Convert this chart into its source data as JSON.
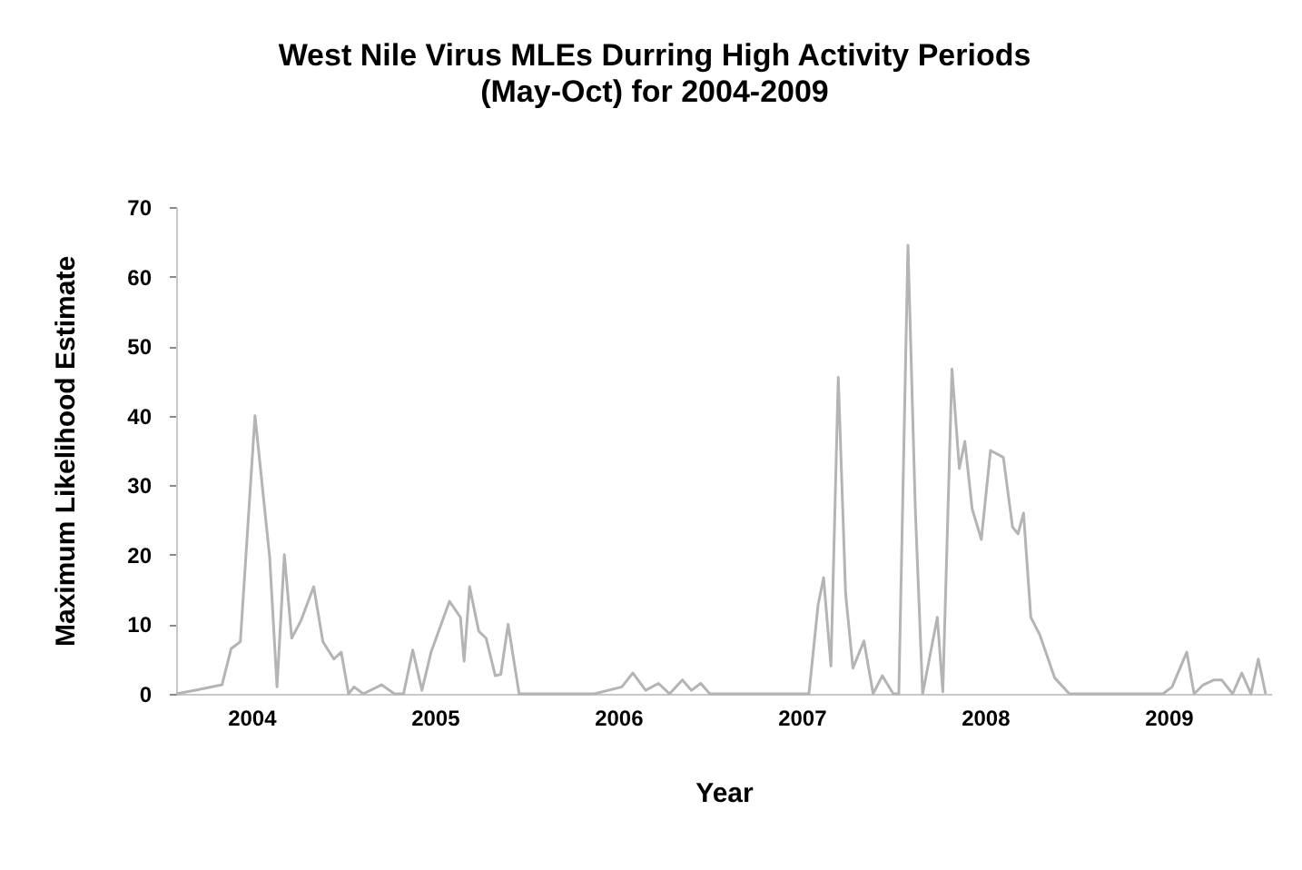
{
  "chart_data": {
    "type": "line",
    "title": "West Nile Virus MLEs Durring High Activity Periods",
    "subtitle": "(May-Oct) for 2004-2009",
    "xlabel": "Year",
    "ylabel": "Maximum Likelihood Estimate",
    "x": [
      2003.59,
      2003.69,
      2003.84,
      2003.89,
      2003.94,
      2004.02,
      2004.1,
      2004.14,
      2004.18,
      2004.22,
      2004.27,
      2004.34,
      2004.39,
      2004.45,
      2004.49,
      2004.53,
      2004.56,
      2004.61,
      2004.71,
      2004.78,
      2004.83,
      2004.88,
      2004.93,
      2004.98,
      2005.08,
      2005.14,
      2005.16,
      2005.19,
      2005.24,
      2005.28,
      2005.33,
      2005.36,
      2005.4,
      2005.46,
      2005.87,
      2006.02,
      2006.08,
      2006.15,
      2006.22,
      2006.28,
      2006.35,
      2006.4,
      2006.45,
      2006.5,
      2007.04,
      2007.09,
      2007.12,
      2007.16,
      2007.2,
      2007.24,
      2007.28,
      2007.34,
      2007.39,
      2007.44,
      2007.5,
      2007.53,
      2007.58,
      2007.62,
      2007.66,
      2007.74,
      2007.77,
      2007.82,
      2007.86,
      2007.89,
      2007.93,
      2007.98,
      2008.03,
      2008.1,
      2008.15,
      2008.18,
      2008.21,
      2008.25,
      2008.3,
      2008.38,
      2008.46,
      2008.97,
      2009.02,
      2009.1,
      2009.14,
      2009.19,
      2009.25,
      2009.29,
      2009.35,
      2009.4,
      2009.45,
      2009.49,
      2009.53
    ],
    "series": [
      {
        "color": "#b4b4b4",
        "values": [
          0,
          0.5,
          1.3,
          6.5,
          7.5,
          40,
          19.6,
          1,
          20,
          8,
          10.5,
          15.4,
          7.5,
          5,
          6,
          0,
          1,
          0,
          1.3,
          0,
          0,
          6.3,
          0.5,
          6,
          13.3,
          11,
          4.7,
          15.4,
          9,
          8,
          2.6,
          2.8,
          10,
          0,
          0,
          1,
          3,
          0.5,
          1.5,
          0,
          2,
          0.5,
          1.5,
          0,
          0,
          12.8,
          16.7,
          4,
          45.5,
          14.4,
          3.7,
          7.6,
          0,
          2.6,
          0,
          0,
          64.5,
          26.6,
          0,
          11,
          0.3,
          46.7,
          32.4,
          36.3,
          26.6,
          22.2,
          35,
          34,
          24,
          23,
          26,
          11,
          8.4,
          2.3,
          0,
          0,
          1,
          6,
          0,
          1.3,
          2,
          2,
          0,
          3,
          0,
          5,
          0
        ]
      }
    ],
    "xlim": [
      2003.59,
      2009.56
    ],
    "xticks": [
      2004,
      2005,
      2006,
      2007,
      2008,
      2009
    ],
    "ylim": [
      0,
      70
    ],
    "yticks": [
      0,
      10,
      20,
      30,
      40,
      50,
      60,
      70
    ],
    "grid": false,
    "marker": "none",
    "line_style": "solid"
  }
}
